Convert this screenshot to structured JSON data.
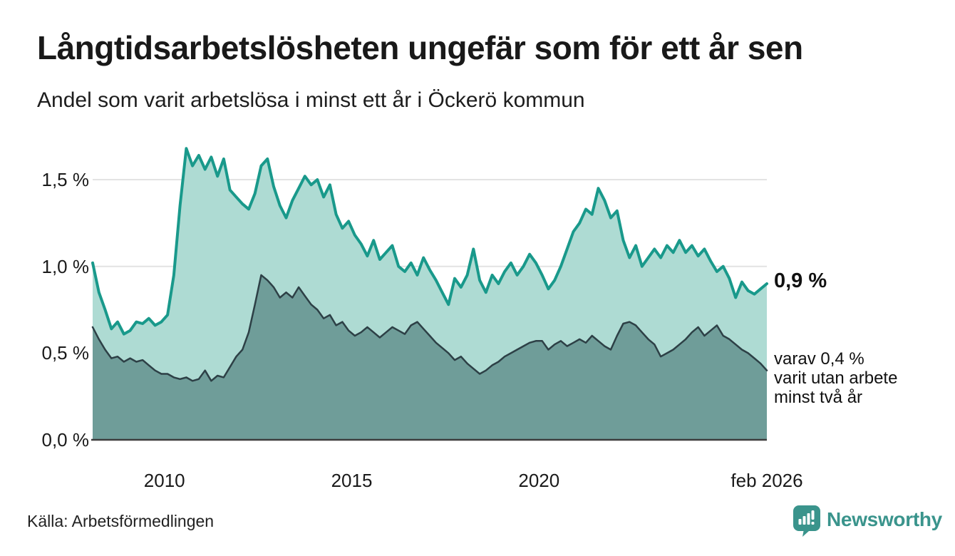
{
  "header": {
    "title": "Långtidsarbetslösheten ungefär som för ett år sen",
    "subtitle": "Andel som varit arbetslösa i minst ett år i Öckerö kommun"
  },
  "chart_data": {
    "type": "area",
    "title": "Långtidsarbetslösheten ungefär som för ett år sen",
    "subtitle": "Andel som varit arbetslösa i minst ett år i Öckerö kommun",
    "unit": "%",
    "x_start": 2008.0833,
    "x_end": 2026.0833,
    "x_step_months": 2,
    "ylim": [
      0,
      1.72
    ],
    "grid": "horizontal",
    "legend_position": "none",
    "x_ticks": [
      {
        "value": 2010,
        "label": "2010"
      },
      {
        "value": 2015,
        "label": "2015"
      },
      {
        "value": 2020,
        "label": "2020"
      },
      {
        "value": 2026.0833,
        "label": "feb 2026"
      }
    ],
    "y_ticks": [
      {
        "value": 1.5,
        "label": "1,5 %"
      },
      {
        "value": 1.0,
        "label": "1,0 %"
      },
      {
        "value": 0.5,
        "label": "0,5 %"
      },
      {
        "value": 0.0,
        "label": "0,0 %"
      }
    ],
    "series": [
      {
        "name": "Arbetslösa minst ett år",
        "latest_value": 0.9,
        "line_color": "#19998b",
        "fill_color": "#aedbd3",
        "values": [
          1.02,
          0.85,
          0.75,
          0.64,
          0.68,
          0.61,
          0.63,
          0.68,
          0.67,
          0.7,
          0.66,
          0.68,
          0.72,
          0.95,
          1.35,
          1.68,
          1.58,
          1.64,
          1.56,
          1.63,
          1.52,
          1.62,
          1.44,
          1.4,
          1.36,
          1.33,
          1.42,
          1.58,
          1.62,
          1.46,
          1.35,
          1.28,
          1.38,
          1.45,
          1.52,
          1.47,
          1.5,
          1.4,
          1.47,
          1.3,
          1.22,
          1.26,
          1.18,
          1.13,
          1.06,
          1.15,
          1.04,
          1.08,
          1.12,
          1.0,
          0.97,
          1.02,
          0.95,
          1.05,
          0.98,
          0.92,
          0.85,
          0.78,
          0.93,
          0.88,
          0.95,
          1.1,
          0.92,
          0.85,
          0.95,
          0.9,
          0.97,
          1.02,
          0.95,
          1.0,
          1.07,
          1.02,
          0.95,
          0.87,
          0.92,
          1.0,
          1.1,
          1.2,
          1.25,
          1.33,
          1.3,
          1.45,
          1.38,
          1.28,
          1.32,
          1.15,
          1.05,
          1.12,
          1.0,
          1.05,
          1.1,
          1.05,
          1.12,
          1.08,
          1.15,
          1.08,
          1.12,
          1.06,
          1.1,
          1.03,
          0.97,
          1.0,
          0.93,
          0.82,
          0.91,
          0.86,
          0.84,
          0.87,
          0.9
        ]
      },
      {
        "name": "Utan arbete minst två år",
        "latest_value": 0.4,
        "line_color": "#2d4046",
        "fill_color": "#6f9d99",
        "values": [
          0.65,
          0.58,
          0.52,
          0.47,
          0.48,
          0.45,
          0.47,
          0.45,
          0.46,
          0.43,
          0.4,
          0.38,
          0.38,
          0.36,
          0.35,
          0.36,
          0.34,
          0.35,
          0.4,
          0.34,
          0.37,
          0.36,
          0.42,
          0.48,
          0.52,
          0.62,
          0.78,
          0.95,
          0.92,
          0.88,
          0.82,
          0.85,
          0.82,
          0.88,
          0.83,
          0.78,
          0.75,
          0.7,
          0.72,
          0.66,
          0.68,
          0.63,
          0.6,
          0.62,
          0.65,
          0.62,
          0.59,
          0.62,
          0.65,
          0.63,
          0.61,
          0.66,
          0.68,
          0.64,
          0.6,
          0.56,
          0.53,
          0.5,
          0.46,
          0.48,
          0.44,
          0.41,
          0.38,
          0.4,
          0.43,
          0.45,
          0.48,
          0.5,
          0.52,
          0.54,
          0.56,
          0.57,
          0.57,
          0.52,
          0.55,
          0.57,
          0.54,
          0.56,
          0.58,
          0.56,
          0.6,
          0.57,
          0.54,
          0.52,
          0.6,
          0.67,
          0.68,
          0.66,
          0.62,
          0.58,
          0.55,
          0.48,
          0.5,
          0.52,
          0.55,
          0.58,
          0.62,
          0.65,
          0.6,
          0.63,
          0.66,
          0.6,
          0.58,
          0.55,
          0.52,
          0.5,
          0.47,
          0.44,
          0.4
        ]
      }
    ]
  },
  "annotations": {
    "latest_total": "0,9 %",
    "latest_two_years": [
      "varav 0,4 %",
      "varit utan arbete",
      "minst två år"
    ]
  },
  "footer": {
    "source": "Källa: Arbetsförmedlingen",
    "brand": "Newsworthy"
  },
  "colors": {
    "background": "#ffffff",
    "line_total": "#19998b",
    "fill_total": "#aedbd3",
    "line_two_years": "#2d4046",
    "fill_two_years": "#6f9d99",
    "gridline": "#e3e3e3",
    "baseline": "#3d3d3d",
    "text": "#1a1a1a",
    "brand_teal": "#3a948c"
  }
}
